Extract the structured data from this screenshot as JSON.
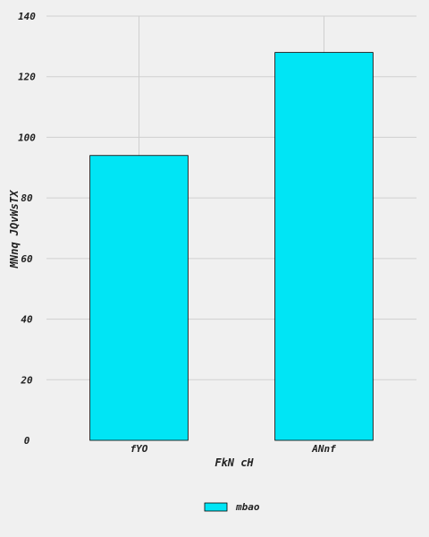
{
  "chart_data": {
    "type": "bar",
    "categories": [
      "fYO",
      "ANnf"
    ],
    "series": [
      {
        "name": "mbao",
        "values": [
          94,
          128
        ],
        "color": "#00e5f5"
      }
    ],
    "xlabel": "FkN cH",
    "ylabel": "MNnq JQvWsTX",
    "ylim": [
      0,
      140
    ],
    "yticks": [
      0,
      20,
      40,
      60,
      80,
      100,
      120,
      140
    ],
    "grid": true,
    "legend_position": "bottom-center"
  }
}
